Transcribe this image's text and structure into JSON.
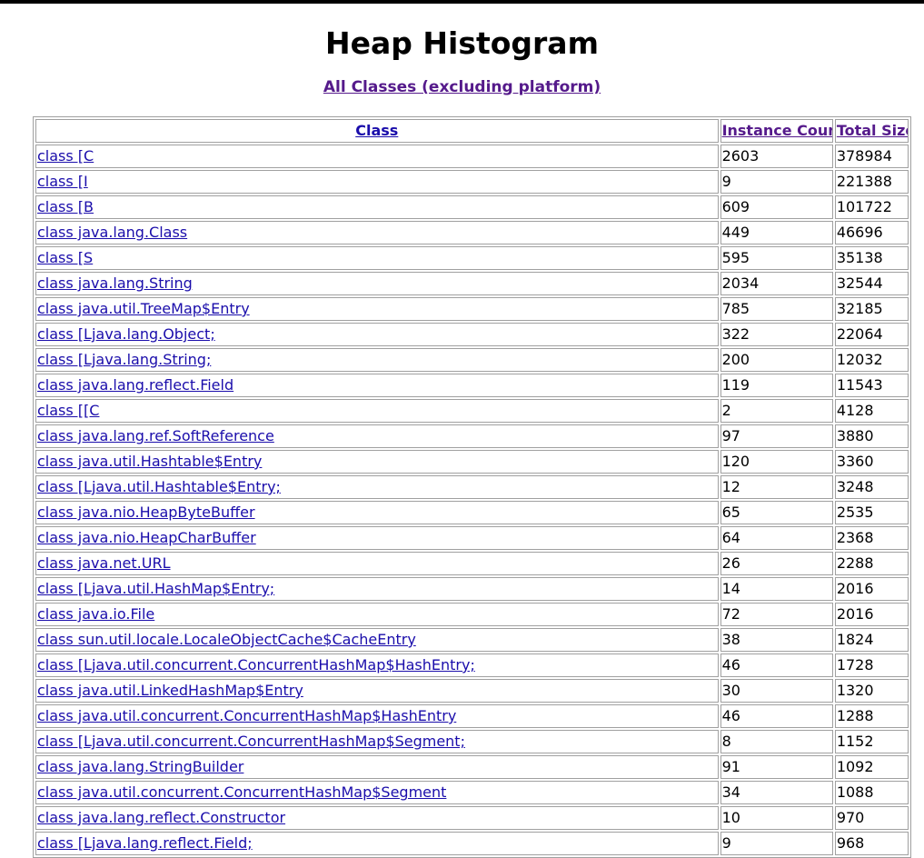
{
  "page": {
    "title": "Heap Histogram",
    "subtitle_link": "All Classes (excluding platform)"
  },
  "table": {
    "headers": {
      "class": "Class",
      "instance_count": "Instance Count",
      "total_size": "Total Size"
    },
    "rows": [
      {
        "cls": "class [C",
        "count": "2603",
        "size": "378984"
      },
      {
        "cls": "class [I",
        "count": "9",
        "size": "221388"
      },
      {
        "cls": "class [B",
        "count": "609",
        "size": "101722"
      },
      {
        "cls": "class java.lang.Class",
        "count": "449",
        "size": "46696"
      },
      {
        "cls": "class [S",
        "count": "595",
        "size": "35138"
      },
      {
        "cls": "class java.lang.String",
        "count": "2034",
        "size": "32544"
      },
      {
        "cls": "class java.util.TreeMap$Entry",
        "count": "785",
        "size": "32185"
      },
      {
        "cls": "class [Ljava.lang.Object;",
        "count": "322",
        "size": "22064"
      },
      {
        "cls": "class [Ljava.lang.String;",
        "count": "200",
        "size": "12032"
      },
      {
        "cls": "class java.lang.reflect.Field",
        "count": "119",
        "size": "11543"
      },
      {
        "cls": "class [[C",
        "count": "2",
        "size": "4128"
      },
      {
        "cls": "class java.lang.ref.SoftReference",
        "count": "97",
        "size": "3880"
      },
      {
        "cls": "class java.util.Hashtable$Entry",
        "count": "120",
        "size": "3360"
      },
      {
        "cls": "class [Ljava.util.Hashtable$Entry;",
        "count": "12",
        "size": "3248"
      },
      {
        "cls": "class java.nio.HeapByteBuffer",
        "count": "65",
        "size": "2535"
      },
      {
        "cls": "class java.nio.HeapCharBuffer",
        "count": "64",
        "size": "2368"
      },
      {
        "cls": "class java.net.URL",
        "count": "26",
        "size": "2288"
      },
      {
        "cls": "class [Ljava.util.HashMap$Entry;",
        "count": "14",
        "size": "2016"
      },
      {
        "cls": "class java.io.File",
        "count": "72",
        "size": "2016"
      },
      {
        "cls": "class sun.util.locale.LocaleObjectCache$CacheEntry",
        "count": "38",
        "size": "1824"
      },
      {
        "cls": "class [Ljava.util.concurrent.ConcurrentHashMap$HashEntry;",
        "count": "46",
        "size": "1728"
      },
      {
        "cls": "class java.util.LinkedHashMap$Entry",
        "count": "30",
        "size": "1320"
      },
      {
        "cls": "class java.util.concurrent.ConcurrentHashMap$HashEntry",
        "count": "46",
        "size": "1288"
      },
      {
        "cls": "class [Ljava.util.concurrent.ConcurrentHashMap$Segment;",
        "count": "8",
        "size": "1152"
      },
      {
        "cls": "class java.lang.StringBuilder",
        "count": "91",
        "size": "1092"
      },
      {
        "cls": "class java.util.concurrent.ConcurrentHashMap$Segment",
        "count": "34",
        "size": "1088"
      },
      {
        "cls": "class java.lang.reflect.Constructor",
        "count": "10",
        "size": "970"
      },
      {
        "cls": "class [Ljava.lang.reflect.Field;",
        "count": "9",
        "size": "968"
      }
    ]
  },
  "colors": {
    "link": "#1a0dab",
    "visited_link": "#551a8b",
    "border": "#a0a0a0"
  }
}
